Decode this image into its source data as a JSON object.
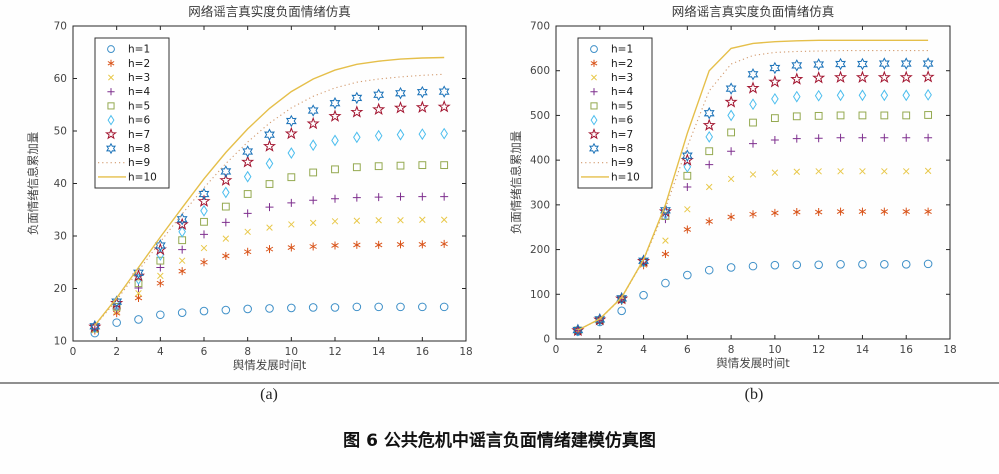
{
  "figure": {
    "caption": "图 6 公共危机中谣言负面情绪建模仿真图",
    "sublabel_a": "(a)",
    "sublabel_b": "(b)"
  },
  "chart_data": [
    {
      "id": "a",
      "type": "scatter",
      "title": "网络谣言真实度负面情绪仿真",
      "xlabel": "舆情发展时间t",
      "ylabel": "负面情绪信息累加量",
      "xlim": [
        0,
        18
      ],
      "ylim": [
        10,
        70
      ],
      "xticks": [
        0,
        2,
        4,
        6,
        8,
        10,
        12,
        14,
        16,
        18
      ],
      "yticks": [
        10,
        20,
        30,
        40,
        50,
        60,
        70
      ],
      "grid": false,
      "legend_position": "top-left",
      "x": [
        1,
        2,
        3,
        4,
        5,
        6,
        7,
        8,
        9,
        10,
        11,
        12,
        13,
        14,
        15,
        16,
        17
      ],
      "series": [
        {
          "name": "h=1",
          "marker": "circle",
          "color": "#3F90C8",
          "values": [
            11.5,
            13.5,
            14.1,
            15.0,
            15.4,
            15.7,
            15.9,
            16.1,
            16.2,
            16.3,
            16.4,
            16.4,
            16.5,
            16.5,
            16.5,
            16.5,
            16.5
          ]
        },
        {
          "name": "h=2",
          "marker": "asterisk",
          "color": "#D95319",
          "values": [
            12.0,
            15.3,
            18.2,
            21.0,
            23.3,
            25.0,
            26.2,
            27.0,
            27.5,
            27.8,
            28.0,
            28.2,
            28.3,
            28.3,
            28.4,
            28.4,
            28.5
          ]
        },
        {
          "name": "h=3",
          "marker": "x",
          "color": "#E8C84A",
          "values": [
            12.1,
            15.7,
            19.1,
            22.4,
            25.3,
            27.7,
            29.5,
            30.8,
            31.6,
            32.2,
            32.5,
            32.8,
            32.9,
            33.0,
            33.0,
            33.1,
            33.1
          ]
        },
        {
          "name": "h=4",
          "marker": "plus",
          "color": "#7E2F8E",
          "values": [
            12.3,
            16.1,
            20.1,
            24.0,
            27.4,
            30.3,
            32.6,
            34.3,
            35.5,
            36.3,
            36.8,
            37.1,
            37.3,
            37.4,
            37.5,
            37.5,
            37.5
          ]
        },
        {
          "name": "h=5",
          "marker": "square",
          "color": "#94A950",
          "values": [
            12.4,
            16.5,
            21.0,
            25.3,
            29.2,
            32.7,
            35.6,
            38.0,
            39.9,
            41.2,
            42.1,
            42.7,
            43.1,
            43.3,
            43.4,
            43.5,
            43.5
          ]
        },
        {
          "name": "h=6",
          "marker": "diamond",
          "color": "#4DBEEE",
          "values": [
            12.6,
            16.9,
            21.8,
            26.4,
            30.8,
            34.8,
            38.3,
            41.3,
            43.8,
            45.8,
            47.3,
            48.2,
            48.8,
            49.1,
            49.3,
            49.4,
            49.5
          ]
        },
        {
          "name": "h=7",
          "marker": "pentagram",
          "color": "#A2142F",
          "values": [
            12.7,
            17.2,
            22.4,
            27.4,
            32.2,
            36.6,
            40.6,
            44.1,
            47.1,
            49.5,
            51.4,
            52.8,
            53.6,
            54.1,
            54.4,
            54.5,
            54.6
          ]
        },
        {
          "name": "h=8",
          "marker": "hexagram",
          "color": "#1C73B9",
          "values": [
            12.8,
            17.5,
            23.0,
            28.2,
            33.2,
            38.0,
            42.3,
            46.1,
            49.3,
            51.9,
            53.9,
            55.3,
            56.3,
            56.9,
            57.2,
            57.4,
            57.5
          ]
        },
        {
          "name": "h=9",
          "line": "dotted",
          "color": "#D29A6E",
          "values": [
            12.9,
            17.8,
            23.4,
            28.9,
            34.2,
            39.2,
            43.8,
            47.9,
            51.5,
            54.4,
            56.6,
            58.2,
            59.3,
            59.9,
            60.3,
            60.6,
            60.8
          ]
        },
        {
          "name": "h=10",
          "line": "solid",
          "color": "#E5BF4A",
          "values": [
            13.0,
            18.2,
            24.0,
            29.8,
            35.4,
            40.9,
            45.9,
            50.4,
            54.3,
            57.5,
            59.9,
            61.6,
            62.7,
            63.3,
            63.7,
            63.9,
            64.0
          ]
        }
      ]
    },
    {
      "id": "b",
      "type": "scatter",
      "title": "网络谣言真实度负面情绪仿真",
      "xlabel": "舆情发展时间t",
      "ylabel": "负面情绪信息累加量",
      "xlim": [
        0,
        18
      ],
      "ylim": [
        0,
        700
      ],
      "xticks": [
        0,
        2,
        4,
        6,
        8,
        10,
        12,
        14,
        16,
        18
      ],
      "yticks": [
        0,
        100,
        200,
        300,
        400,
        500,
        600,
        700
      ],
      "grid": false,
      "legend_position": "top-left",
      "x": [
        1,
        2,
        3,
        4,
        5,
        6,
        7,
        8,
        9,
        10,
        11,
        12,
        13,
        14,
        15,
        16,
        17
      ],
      "series": [
        {
          "name": "h=1",
          "marker": "circle",
          "color": "#3F90C8",
          "values": [
            17,
            38,
            63,
            98,
            125,
            143,
            154,
            160,
            163,
            165,
            166,
            166,
            167,
            167,
            167,
            167,
            168
          ]
        },
        {
          "name": "h=2",
          "marker": "asterisk",
          "color": "#D95319",
          "values": [
            18,
            40,
            85,
            165,
            190,
            245,
            263,
            273,
            279,
            282,
            284,
            284,
            285,
            285,
            285,
            285,
            285
          ]
        },
        {
          "name": "h=3",
          "marker": "x",
          "color": "#E8C84A",
          "values": [
            18,
            41,
            87,
            168,
            220,
            290,
            340,
            358,
            368,
            372,
            374,
            375,
            375,
            375,
            375,
            375,
            376
          ]
        },
        {
          "name": "h=4",
          "marker": "plus",
          "color": "#7E2F8E",
          "values": [
            19,
            42,
            88,
            170,
            268,
            340,
            390,
            420,
            437,
            445,
            448,
            449,
            450,
            450,
            450,
            450,
            450
          ]
        },
        {
          "name": "h=5",
          "marker": "square",
          "color": "#94A950",
          "values": [
            19,
            42,
            89,
            172,
            275,
            365,
            420,
            462,
            484,
            494,
            498,
            499,
            500,
            500,
            500,
            500,
            501
          ]
        },
        {
          "name": "h=6",
          "marker": "diamond",
          "color": "#4DBEEE",
          "values": [
            19,
            43,
            90,
            173,
            280,
            385,
            452,
            500,
            525,
            537,
            542,
            544,
            545,
            545,
            545,
            545,
            546
          ]
        },
        {
          "name": "h=7",
          "marker": "pentagram",
          "color": "#A2142F",
          "values": [
            19,
            43,
            90,
            174,
            285,
            400,
            478,
            530,
            561,
            575,
            581,
            584,
            585,
            585,
            585,
            585,
            586
          ]
        },
        {
          "name": "h=8",
          "marker": "hexagram",
          "color": "#1C73B9",
          "values": [
            20,
            44,
            91,
            175,
            288,
            410,
            505,
            560,
            592,
            606,
            612,
            614,
            615,
            615,
            616,
            616,
            616
          ]
        },
        {
          "name": "h=9",
          "line": "dotted",
          "color": "#D29A6E",
          "values": [
            20,
            44,
            92,
            176,
            292,
            430,
            555,
            615,
            634,
            641,
            643,
            644,
            645,
            645,
            645,
            645,
            645
          ]
        },
        {
          "name": "h=10",
          "line": "solid",
          "color": "#E5BF4A",
          "values": [
            20,
            45,
            93,
            178,
            300,
            460,
            600,
            650,
            661,
            665,
            667,
            668,
            668,
            668,
            668,
            668,
            668
          ]
        }
      ]
    }
  ]
}
